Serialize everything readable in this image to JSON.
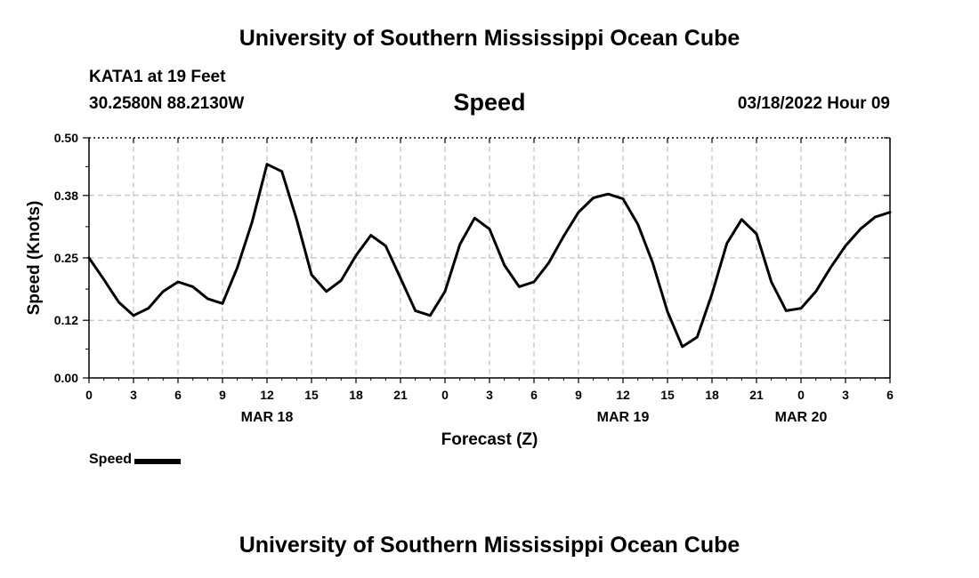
{
  "header": {
    "title": "University of Southern Mississippi Ocean Cube",
    "station": "KATA1 at 19 Feet",
    "coords": "30.2580N  88.2130W",
    "variable": "Speed",
    "date": "03/18/2022 Hour 09"
  },
  "footer": {
    "title": "University of Southern Mississippi Ocean Cube"
  },
  "legend": {
    "label": "Speed",
    "color": "#000000"
  },
  "chart_data": {
    "type": "line",
    "title": "Speed",
    "xlabel": "Forecast (Z)",
    "ylabel": "Speed (Knots)",
    "ylim": [
      0,
      0.5
    ],
    "yticks": [
      "0.00",
      "0.12",
      "0.25",
      "0.38",
      "0.50"
    ],
    "xticks": [
      "0",
      "3",
      "6",
      "9",
      "12",
      "15",
      "18",
      "21",
      "0",
      "3",
      "6",
      "9",
      "12",
      "15",
      "18",
      "21",
      "0",
      "3",
      "6"
    ],
    "day_labels": [
      {
        "label": "MAR 18",
        "tick": "12"
      },
      {
        "label": "MAR 19",
        "tick": "12"
      },
      {
        "label": "MAR 20",
        "tick": "0"
      }
    ],
    "grid": true,
    "series": [
      {
        "name": "Speed",
        "color": "#000000",
        "x": [
          "03/18 00Z",
          "03/18 01Z",
          "03/18 02Z",
          "03/18 03Z",
          "03/18 04Z",
          "03/18 05Z",
          "03/18 06Z",
          "03/18 07Z",
          "03/18 08Z",
          "03/18 09Z",
          "03/18 10Z",
          "03/18 11Z",
          "03/18 12Z",
          "03/18 13Z",
          "03/18 14Z",
          "03/18 15Z",
          "03/18 16Z",
          "03/18 17Z",
          "03/18 18Z",
          "03/18 19Z",
          "03/18 20Z",
          "03/18 21Z",
          "03/18 22Z",
          "03/18 23Z",
          "03/19 00Z",
          "03/19 01Z",
          "03/19 02Z",
          "03/19 03Z",
          "03/19 04Z",
          "03/19 05Z",
          "03/19 06Z",
          "03/19 07Z",
          "03/19 08Z",
          "03/19 09Z",
          "03/19 10Z",
          "03/19 11Z",
          "03/19 12Z",
          "03/19 13Z",
          "03/19 14Z",
          "03/19 15Z",
          "03/19 16Z",
          "03/19 17Z",
          "03/19 18Z",
          "03/19 19Z",
          "03/19 20Z",
          "03/19 21Z",
          "03/19 22Z",
          "03/19 23Z",
          "03/20 00Z",
          "03/20 01Z",
          "03/20 02Z",
          "03/20 03Z",
          "03/20 04Z",
          "03/20 05Z",
          "03/20 06Z"
        ],
        "values": [
          0.25,
          0.205,
          0.158,
          0.13,
          0.145,
          0.18,
          0.2,
          0.19,
          0.165,
          0.155,
          0.23,
          0.325,
          0.445,
          0.43,
          0.33,
          0.215,
          0.18,
          0.203,
          0.255,
          0.297,
          0.275,
          0.208,
          0.14,
          0.13,
          0.18,
          0.278,
          0.333,
          0.31,
          0.235,
          0.19,
          0.2,
          0.24,
          0.295,
          0.345,
          0.375,
          0.383,
          0.373,
          0.32,
          0.24,
          0.138,
          0.065,
          0.085,
          0.175,
          0.28,
          0.33,
          0.3,
          0.2,
          0.14,
          0.145,
          0.18,
          0.23,
          0.275,
          0.31,
          0.335,
          0.345
        ]
      }
    ]
  }
}
